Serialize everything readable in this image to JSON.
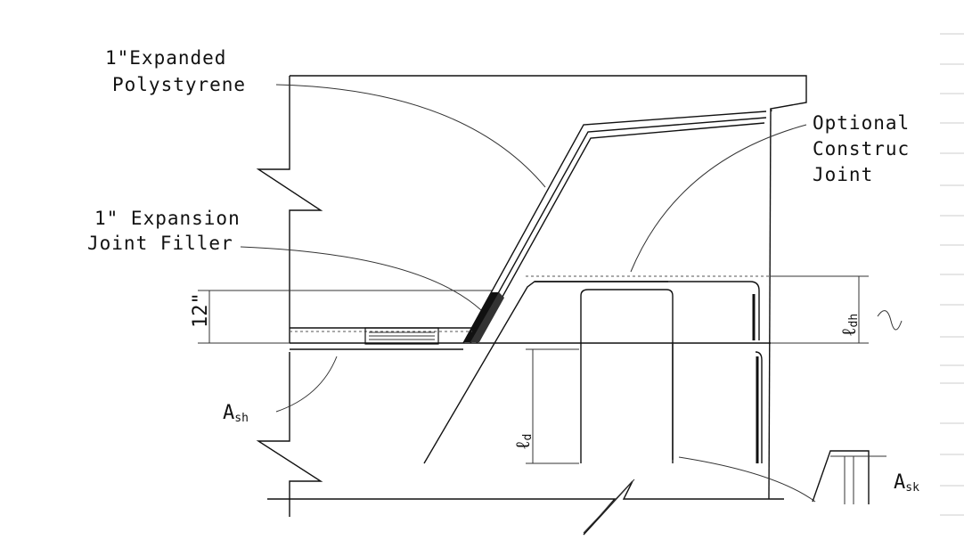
{
  "labels": {
    "expanded_polystyrene_1": "1\"Expanded",
    "expanded_polystyrene_2": "Polystyrene",
    "optional_joint_1": "Optional",
    "optional_joint_2": "Construc",
    "optional_joint_3": "Joint",
    "expansion_filler_1": "1\"  Expansion",
    "expansion_filler_2": "Joint Filler",
    "dim_12": "12\"",
    "ash_main": "A",
    "ash_sub": "sh",
    "ask_main": "A",
    "ask_sub": "sk",
    "ldh_main": "ℓ",
    "ldh_sub": "dh",
    "ld_main": "ℓ",
    "ld_sub": "d"
  },
  "colors": {
    "line": "#111111",
    "background": "#ffffff"
  }
}
